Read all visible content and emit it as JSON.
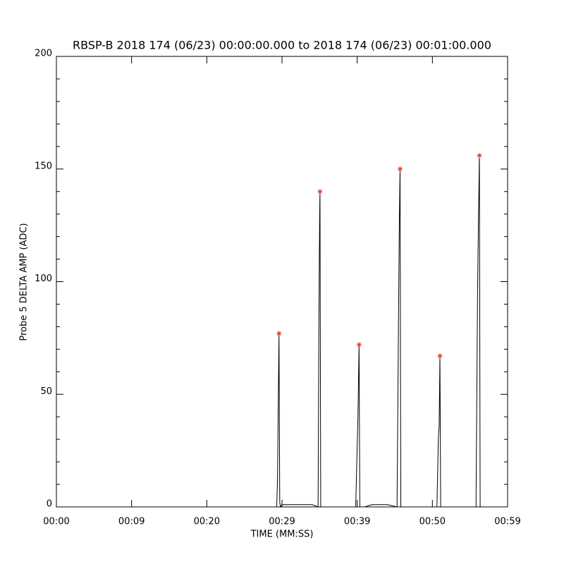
{
  "chart_data": {
    "type": "line",
    "title": "RBSP-B 2018 174 (06/23) 00:00:00.000 to 2018 174 (06/23) 00:01:00.000",
    "x_label": "TIME (MM:SS)",
    "y_label": "Probe 5 DELTA AMP (ADC)",
    "xlim": [
      0,
      60
    ],
    "xticks": [
      {
        "value": 0,
        "label": "00:00"
      },
      {
        "value": 10,
        "label": "00:09"
      },
      {
        "value": 20,
        "label": "00:20"
      },
      {
        "value": 30,
        "label": "00:29"
      },
      {
        "value": 40,
        "label": "00:39"
      },
      {
        "value": 50,
        "label": "00:50"
      },
      {
        "value": 60,
        "label": "00:59"
      }
    ],
    "ylim": [
      0,
      200
    ],
    "yticks": [
      0,
      50,
      100,
      150,
      200
    ],
    "yminorticks": [
      10,
      20,
      30,
      40,
      60,
      70,
      80,
      90,
      110,
      120,
      130,
      140,
      160,
      170,
      180,
      190
    ],
    "grid": false,
    "series": [
      {
        "color": "#000000",
        "marker": "none",
        "x": [
          0,
          29.3,
          29.4,
          29.5,
          29.6,
          29.7,
          29.8,
          30.0,
          32,
          34,
          34.8,
          34.9,
          35.0,
          35.05,
          35.15,
          36,
          38,
          39.8,
          40.0,
          40.1,
          40.25,
          40.35,
          41,
          42,
          44,
          45.3,
          45.5,
          45.6,
          45.7,
          45.8,
          50.6,
          50.8,
          50.9,
          51.0,
          51.1,
          55.8,
          56.0,
          56.1,
          56.25,
          56.35,
          60
        ],
        "values": [
          0,
          0,
          12,
          45,
          77,
          2,
          0,
          1,
          1,
          1,
          0,
          78,
          127,
          140,
          0,
          0,
          0,
          0,
          27,
          40,
          72,
          0,
          0,
          1,
          1,
          0,
          86,
          125,
          150,
          0,
          0,
          31,
          36,
          67,
          0,
          0,
          93,
          121,
          156,
          0,
          0
        ]
      },
      {
        "color": "#e8321e",
        "marker": "asterisk",
        "x": [
          29.6,
          35.05,
          40.25,
          45.7,
          51.0,
          56.25
        ],
        "values": [
          77,
          140,
          72,
          150,
          67,
          156
        ]
      }
    ]
  }
}
